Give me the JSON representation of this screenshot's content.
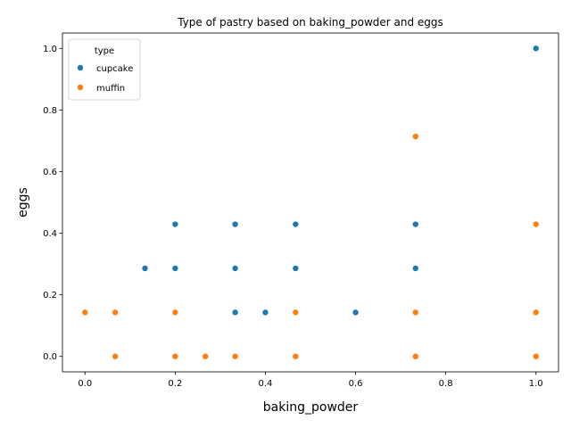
{
  "chart_data": {
    "type": "scatter",
    "title": "Type of pastry based on baking_powder and eggs",
    "xlabel": "baking_powder",
    "ylabel": "eggs",
    "xlim": [
      -0.05,
      1.05
    ],
    "ylim": [
      -0.05,
      1.05
    ],
    "xticks": [
      "0.0",
      "0.2",
      "0.4",
      "0.6",
      "0.8",
      "1.0"
    ],
    "yticks": [
      "0.0",
      "0.2",
      "0.4",
      "0.6",
      "0.8",
      "1.0"
    ],
    "grid": false,
    "legend": {
      "title": "type",
      "position": "top-left"
    },
    "series": [
      {
        "name": "cupcake",
        "color": "#1f77b4",
        "points": [
          [
            1.0,
            1.0
          ],
          [
            0.2,
            0.429
          ],
          [
            0.333,
            0.429
          ],
          [
            0.467,
            0.429
          ],
          [
            0.733,
            0.429
          ],
          [
            0.133,
            0.286
          ],
          [
            0.2,
            0.286
          ],
          [
            0.333,
            0.286
          ],
          [
            0.467,
            0.286
          ],
          [
            0.733,
            0.286
          ],
          [
            0.333,
            0.143
          ],
          [
            0.4,
            0.143
          ],
          [
            0.6,
            0.143
          ]
        ]
      },
      {
        "name": "muffin",
        "color": "#ff7f0e",
        "points": [
          [
            0.733,
            0.714
          ],
          [
            1.0,
            0.429
          ],
          [
            0.0,
            0.143
          ],
          [
            0.067,
            0.143
          ],
          [
            0.2,
            0.143
          ],
          [
            0.467,
            0.143
          ],
          [
            0.733,
            0.143
          ],
          [
            1.0,
            0.143
          ],
          [
            0.067,
            0.0
          ],
          [
            0.2,
            0.0
          ],
          [
            0.267,
            0.0
          ],
          [
            0.333,
            0.0
          ],
          [
            0.467,
            0.0
          ],
          [
            0.733,
            0.0
          ],
          [
            1.0,
            0.0
          ]
        ]
      }
    ]
  }
}
